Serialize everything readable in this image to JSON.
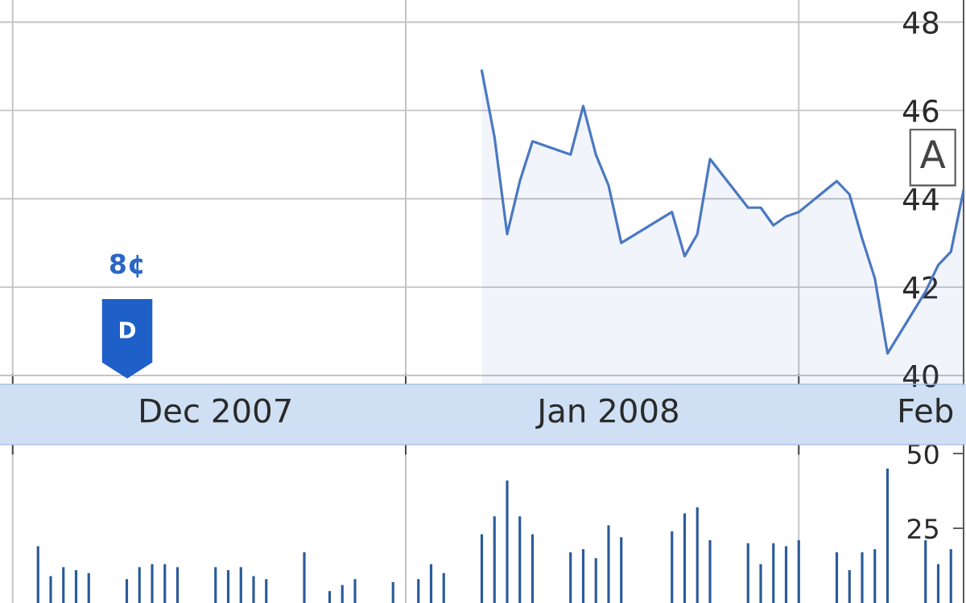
{
  "chart_data": [
    {
      "type": "area",
      "color": "#4a78c2",
      "x": [
        "2008-01-07",
        "2008-01-08",
        "2008-01-09",
        "2008-01-10",
        "2008-01-11",
        "2008-01-14",
        "2008-01-15",
        "2008-01-16",
        "2008-01-17",
        "2008-01-18",
        "2008-01-22",
        "2008-01-23",
        "2008-01-24",
        "2008-01-25",
        "2008-01-28",
        "2008-01-29",
        "2008-01-30",
        "2008-01-31",
        "2008-02-01",
        "2008-02-04",
        "2008-02-05",
        "2008-02-06",
        "2008-02-07",
        "2008-02-08",
        "2008-02-11",
        "2008-02-12",
        "2008-02-13",
        "2008-02-14"
      ],
      "values": [
        46.9,
        45.4,
        43.2,
        44.4,
        45.3,
        45.0,
        46.1,
        45.0,
        44.3,
        43.0,
        43.7,
        42.7,
        43.2,
        44.9,
        43.8,
        43.8,
        43.4,
        43.6,
        43.7,
        44.4,
        44.1,
        43.1,
        42.2,
        40.5,
        41.9,
        42.5,
        42.8,
        44.2
      ],
      "xlim": [
        "2007-11-30",
        "2008-02-14"
      ],
      "xticks": [
        {
          "value": "2007-12-01",
          "label": null
        },
        {
          "value": "2007-12-17",
          "label": "Dec 2007"
        },
        {
          "value": "2008-01-01",
          "label": null
        },
        {
          "value": "2008-01-17",
          "label": "Jan 2008"
        },
        {
          "value": "2008-02-01",
          "label": null
        },
        {
          "value": "2008-02-11",
          "label": "Feb"
        }
      ],
      "ylim": [
        39.8,
        48.5
      ],
      "yticks": [
        40,
        42,
        44,
        46,
        48
      ],
      "grid": true,
      "annotations": [
        "8¢",
        "D",
        "A"
      ]
    },
    {
      "type": "bar",
      "color": "#2a5a9a",
      "x": [
        "2007-12-03",
        "2007-12-04",
        "2007-12-05",
        "2007-12-06",
        "2007-12-07",
        "2007-12-10",
        "2007-12-11",
        "2007-12-12",
        "2007-12-13",
        "2007-12-14",
        "2007-12-17",
        "2007-12-18",
        "2007-12-19",
        "2007-12-20",
        "2007-12-21",
        "2007-12-24",
        "2007-12-26",
        "2007-12-27",
        "2007-12-28",
        "2007-12-31",
        "2008-01-02",
        "2008-01-03",
        "2008-01-04",
        "2008-01-07",
        "2008-01-08",
        "2008-01-09",
        "2008-01-10",
        "2008-01-11",
        "2008-01-14",
        "2008-01-15",
        "2008-01-16",
        "2008-01-17",
        "2008-01-18",
        "2008-01-22",
        "2008-01-23",
        "2008-01-24",
        "2008-01-25",
        "2008-01-28",
        "2008-01-29",
        "2008-01-30",
        "2008-01-31",
        "2008-02-01",
        "2008-02-04",
        "2008-02-05",
        "2008-02-06",
        "2008-02-07",
        "2008-02-08",
        "2008-02-11",
        "2008-02-12",
        "2008-02-13"
      ],
      "values": [
        19,
        9,
        12,
        11,
        10,
        8,
        12,
        13,
        13,
        12,
        12,
        11,
        12,
        9,
        8,
        17,
        4,
        6,
        8,
        7,
        8,
        13,
        10,
        23,
        29,
        41,
        29,
        23,
        17,
        18,
        15,
        26,
        22,
        24,
        30,
        32,
        21,
        20,
        13,
        20,
        19,
        21,
        17,
        11,
        17,
        18,
        45,
        21,
        13,
        18
      ],
      "xlim": [
        "2007-11-30",
        "2008-02-14"
      ],
      "xticks": [
        {
          "value": "2007-12-01",
          "label": null
        },
        {
          "value": "2008-01-01",
          "label": null
        },
        {
          "value": "2008-02-01",
          "label": null
        }
      ],
      "ylim": [
        0,
        53
      ],
      "yticks": [
        25,
        50
      ],
      "grid": "x",
      "tick_labels": "y"
    }
  ]
}
